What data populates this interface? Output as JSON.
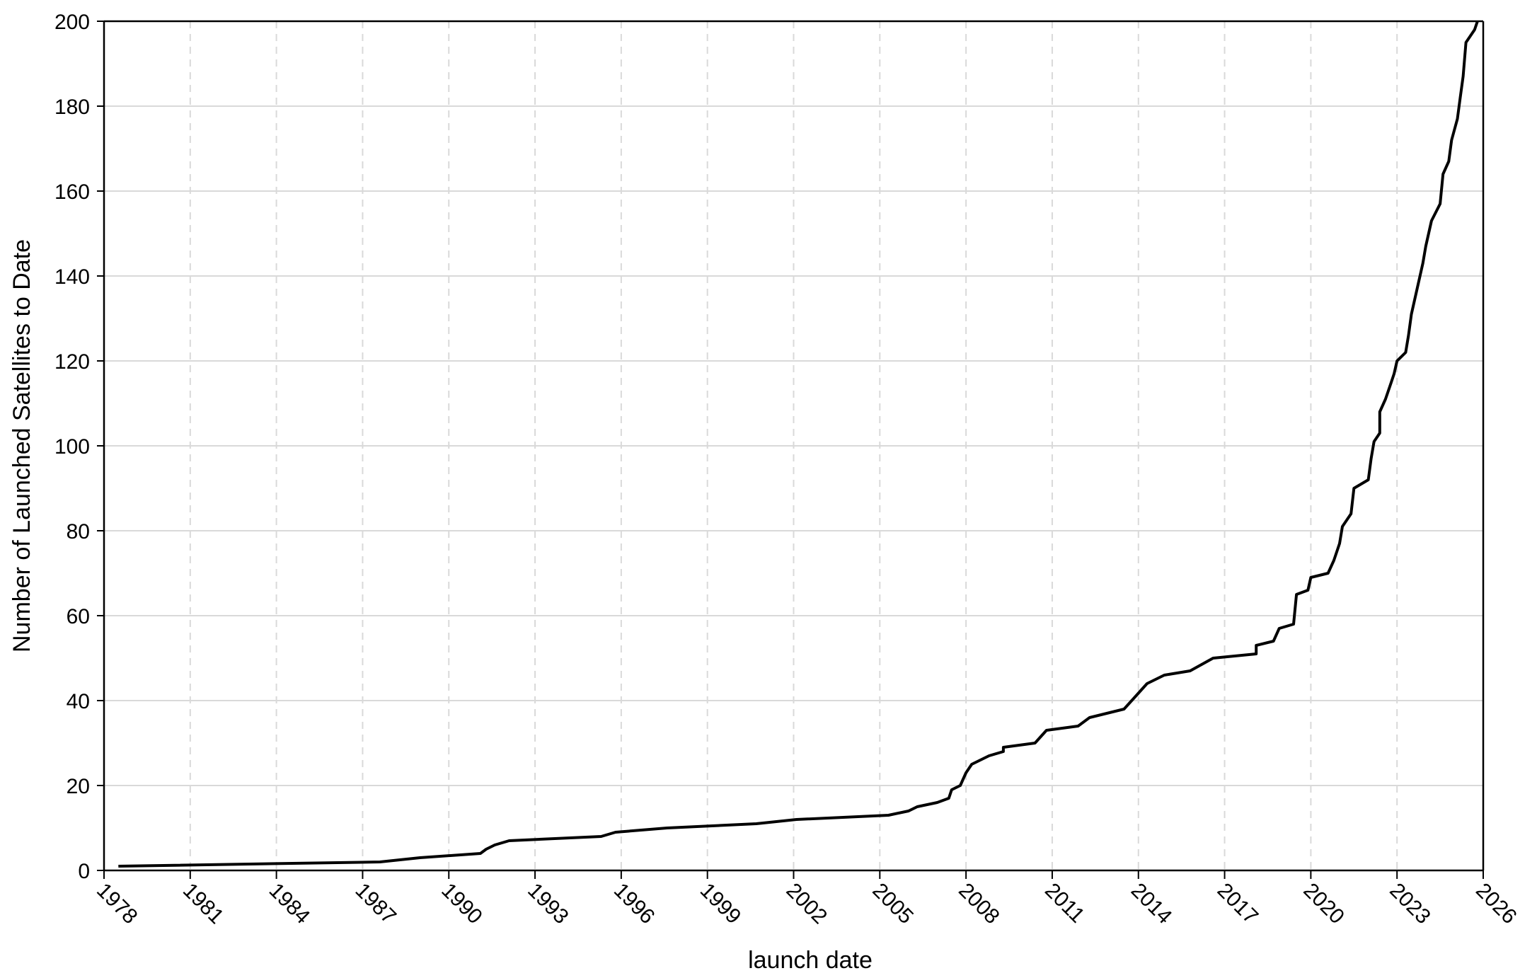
{
  "chart_data": {
    "type": "line",
    "xlabel": "launch date",
    "ylabel": "Number of Launched Satellites to Date",
    "x": [
      1978.5,
      1987.6,
      1989.0,
      1991.1,
      1991.3,
      1991.6,
      1992.1,
      1995.3,
      1995.8,
      1997.6,
      2000.7,
      2002.1,
      2005.3,
      2006.0,
      2006.3,
      2007.0,
      2007.4,
      2007.5,
      2007.8,
      2008.0,
      2008.2,
      2008.8,
      2009.3,
      2009.3,
      2010.4,
      2010.8,
      2011.9,
      2012.3,
      2013.5,
      2013.9,
      2014.3,
      2014.9,
      2015.8,
      2016.6,
      2018.1,
      2018.1,
      2018.7,
      2018.9,
      2019.4,
      2019.5,
      2019.9,
      2020.0,
      2020.6,
      2020.8,
      2021.0,
      2021.1,
      2021.4,
      2021.5,
      2022.0,
      2022.1,
      2022.2,
      2022.4,
      2022.4,
      2022.6,
      2022.8,
      2022.9,
      2023.0,
      2023.3,
      2023.4,
      2023.5,
      2023.7,
      2023.9,
      2024.0,
      2024.2,
      2024.5,
      2024.6,
      2024.8,
      2024.9,
      2025.1,
      2025.2,
      2025.3,
      2025.4,
      2025.7,
      2025.8
    ],
    "series": [
      {
        "color": "#000000",
        "values": [
          1,
          2,
          3,
          4,
          5,
          6,
          7,
          8,
          9,
          10,
          11,
          12,
          13,
          14,
          15,
          16,
          17,
          19,
          20,
          23,
          25,
          27,
          28,
          29,
          30,
          33,
          34,
          36,
          38,
          41,
          44,
          46,
          47,
          50,
          51,
          53,
          54,
          57,
          58,
          65,
          66,
          69,
          70,
          73,
          77,
          81,
          84,
          90,
          92,
          97,
          101,
          103,
          108,
          111,
          115,
          117,
          120,
          122,
          126,
          131,
          137,
          143,
          147,
          153,
          157,
          164,
          167,
          172,
          177,
          182,
          187,
          195,
          198,
          200
        ]
      }
    ],
    "xlim": [
      1978,
      2026
    ],
    "xticks": [
      1978,
      1981,
      1984,
      1987,
      1990,
      1993,
      1996,
      1999,
      2002,
      2005,
      2008,
      2011,
      2014,
      2017,
      2020,
      2023,
      2026
    ],
    "ylim": [
      0,
      200
    ],
    "yticks": [
      0,
      20,
      40,
      60,
      80,
      100,
      120,
      140,
      160,
      180,
      200
    ],
    "grid": true
  }
}
